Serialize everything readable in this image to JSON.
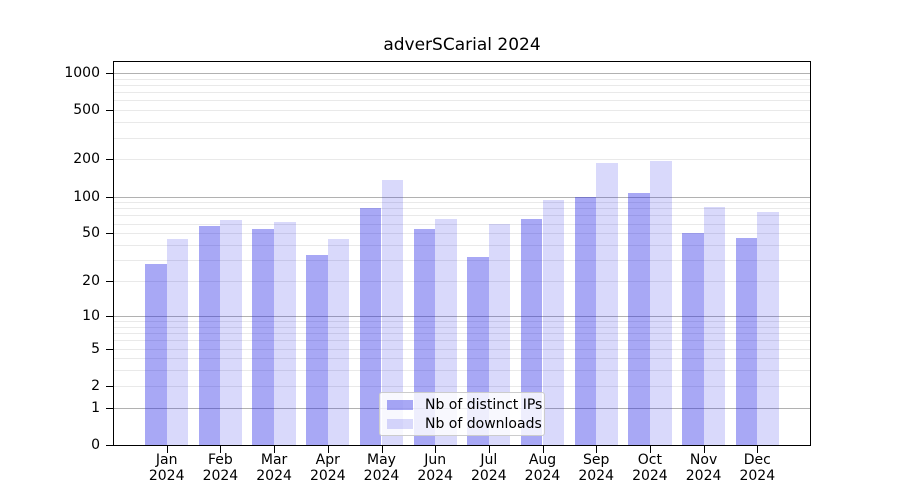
{
  "chart_data": {
    "type": "bar",
    "title": "adverSCarial 2024",
    "categories": [
      "Jan",
      "Feb",
      "Mar",
      "Apr",
      "May",
      "Jun",
      "Jul",
      "Aug",
      "Sep",
      "Oct",
      "Nov",
      "Dec"
    ],
    "category_year_suffix": "2024",
    "series": [
      {
        "name": "Nb of distinct IPs",
        "color": "rgba(30,30,230,0.39)",
        "values": [
          28,
          57,
          54,
          33,
          80,
          54,
          32,
          66,
          100,
          107,
          50,
          46
        ]
      },
      {
        "name": "Nb of downloads",
        "color": "rgba(30,30,230,0.17)",
        "values": [
          45,
          64,
          62,
          45,
          135,
          66,
          60,
          94,
          188,
          195,
          82,
          75
        ]
      }
    ],
    "yscale": "log1p",
    "ylim": [
      0,
      1250
    ],
    "ytick_labels": [
      "0",
      "1",
      "2",
      "5",
      "10",
      "20",
      "50",
      "100",
      "200",
      "500",
      "1000"
    ],
    "grid": "both",
    "grid_major_color": "#b1b1b1",
    "grid_minor_color": "#e9e9e9",
    "legend_position": "lower-center",
    "background_color": "#ffffff",
    "spine_color": "#000000"
  }
}
